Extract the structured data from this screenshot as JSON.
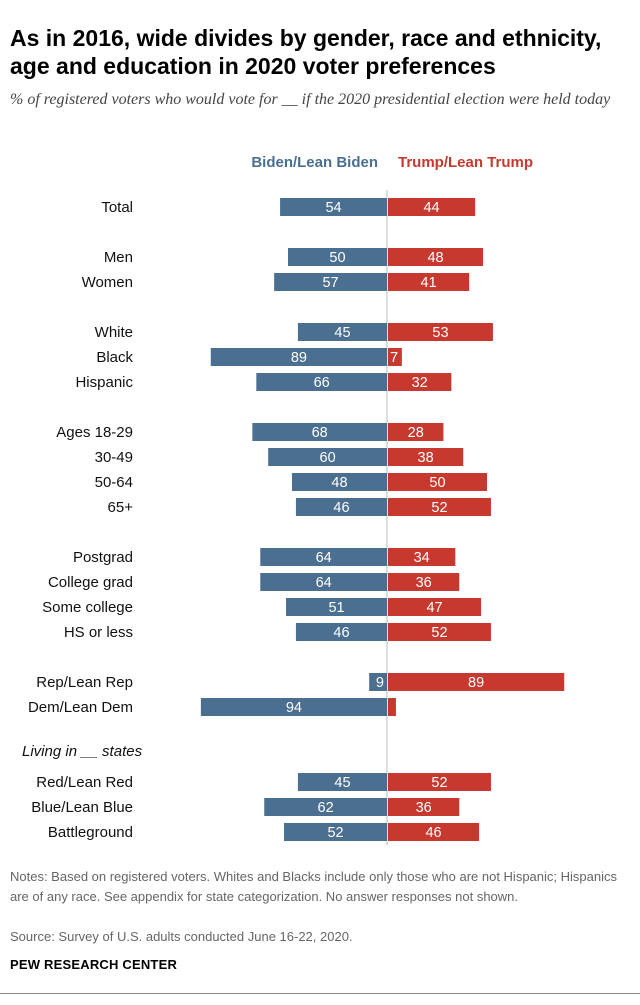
{
  "title": "As in 2016, wide divides by gender, race and ethnicity, age and education in 2020 voter preferences",
  "subtitle": "% of registered voters who would vote for __ if the 2020 presidential election were held today",
  "notes": "Notes: Based on registered voters. Whites and Blacks include only those who are not Hispanic; Hispanics are of any race. See appendix for state categorization. No answer responses not shown.",
  "source": "Source: Survey of U.S. adults conducted June 16-22, 2020.",
  "brand": "PEW RESEARCH CENTER",
  "colors": {
    "biden": "#4b6f90",
    "trump": "#c7392e",
    "axis": "#bbbbbb"
  },
  "chart_data": {
    "type": "bar",
    "orientation": "horizontal-diverging",
    "legend": [
      "Biden/Lean Biden",
      "Trump/Lean Trump"
    ],
    "section_label": "Living in __ states",
    "rows": [
      {
        "label": "Total",
        "biden": 54,
        "trump": 44,
        "group": 0
      },
      {
        "label": "Men",
        "biden": 50,
        "trump": 48,
        "group": 1
      },
      {
        "label": "Women",
        "biden": 57,
        "trump": 41,
        "group": 1
      },
      {
        "label": "White",
        "biden": 45,
        "trump": 53,
        "group": 2
      },
      {
        "label": "Black",
        "biden": 89,
        "trump": 7,
        "group": 2
      },
      {
        "label": "Hispanic",
        "biden": 66,
        "trump": 32,
        "group": 2
      },
      {
        "label": "Ages 18-29",
        "biden": 68,
        "trump": 28,
        "group": 3
      },
      {
        "label": "30-49",
        "biden": 60,
        "trump": 38,
        "group": 3
      },
      {
        "label": "50-64",
        "biden": 48,
        "trump": 50,
        "group": 3
      },
      {
        "label": "65+",
        "biden": 46,
        "trump": 52,
        "group": 3
      },
      {
        "label": "Postgrad",
        "biden": 64,
        "trump": 34,
        "group": 4
      },
      {
        "label": "College grad",
        "biden": 64,
        "trump": 36,
        "group": 4
      },
      {
        "label": "Some college",
        "biden": 51,
        "trump": 47,
        "group": 4
      },
      {
        "label": "HS or less",
        "biden": 46,
        "trump": 52,
        "group": 4
      },
      {
        "label": "Rep/Lean Rep",
        "biden": 9,
        "trump": 89,
        "group": 5
      },
      {
        "label": "Dem/Lean Dem",
        "biden": 94,
        "trump": 4,
        "group": 5
      },
      {
        "label": "Red/Lean Red",
        "biden": 45,
        "trump": 52,
        "group": 6
      },
      {
        "label": "Blue/Lean Blue",
        "biden": 62,
        "trump": 36,
        "group": 6
      },
      {
        "label": "Battleground",
        "biden": 52,
        "trump": 46,
        "group": 6
      }
    ],
    "hidden_value_labels": [
      "Dem/Lean Dem:trump"
    ]
  }
}
